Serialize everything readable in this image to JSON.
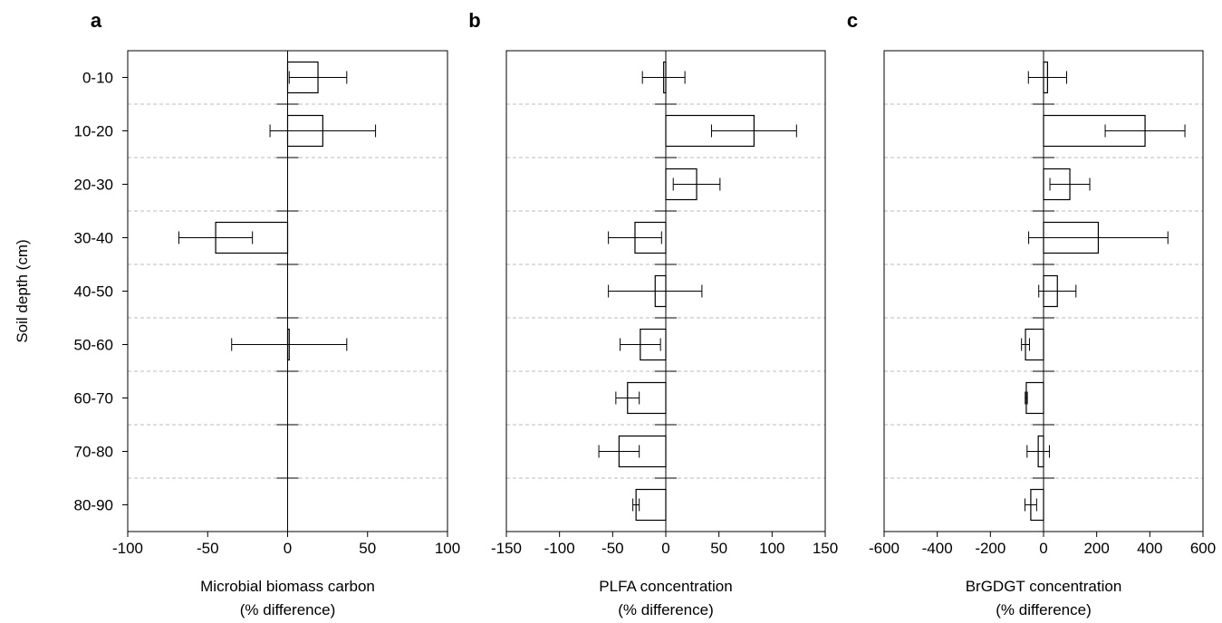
{
  "chart_data": [
    {
      "type": "bar",
      "orientation": "horizontal",
      "panel_label": "a",
      "ylabel": "Soil depth (cm)",
      "categories": [
        "0-10",
        "10-20",
        "20-30",
        "30-40",
        "40-50",
        "50-60",
        "60-70",
        "70-80",
        "80-90"
      ],
      "xlabel_lines": [
        "Microbial biomass carbon",
        "(% difference)"
      ],
      "xlim": [
        -100,
        100
      ],
      "xticks": [
        -100,
        -50,
        0,
        50,
        100
      ],
      "values": [
        19,
        22,
        null,
        -45,
        null,
        1,
        null,
        null,
        null
      ],
      "error": [
        18,
        33,
        null,
        23,
        null,
        36,
        null,
        null,
        null
      ],
      "grid": false
    },
    {
      "type": "bar",
      "orientation": "horizontal",
      "panel_label": "b",
      "categories": [
        "0-10",
        "10-20",
        "20-30",
        "30-40",
        "40-50",
        "50-60",
        "60-70",
        "70-80",
        "80-90"
      ],
      "xlabel_lines": [
        "PLFA concentration",
        "(% difference)"
      ],
      "xlim": [
        -150,
        150
      ],
      "xticks": [
        -150,
        -100,
        -50,
        0,
        50,
        100,
        150
      ],
      "values": [
        -2,
        83,
        29,
        -29,
        -10,
        -24,
        -36,
        -44,
        -28
      ],
      "error": [
        20,
        40,
        22,
        25,
        44,
        19,
        11,
        19,
        3
      ],
      "grid": false
    },
    {
      "type": "bar",
      "orientation": "horizontal",
      "panel_label": "c",
      "categories": [
        "0-10",
        "10-20",
        "20-30",
        "30-40",
        "40-50",
        "50-60",
        "60-70",
        "70-80",
        "80-90"
      ],
      "xlabel_lines": [
        "BrGDGT concentration",
        "(% difference)"
      ],
      "xlim": [
        -600,
        600
      ],
      "xticks": [
        -600,
        -400,
        -200,
        0,
        200,
        400,
        600
      ],
      "values": [
        15,
        382,
        99,
        206,
        52,
        -68,
        -65,
        -20,
        -48
      ],
      "error": [
        72,
        150,
        75,
        262,
        70,
        15,
        4,
        42,
        22
      ],
      "grid": false
    }
  ]
}
